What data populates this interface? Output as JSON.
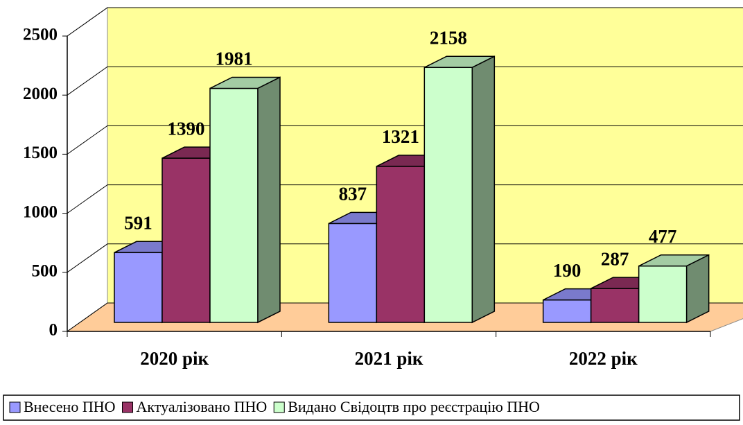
{
  "chart_data": {
    "type": "bar3d",
    "categories": [
      "2020 рік",
      "2021 рік",
      "2022 рік"
    ],
    "series": [
      {
        "name": "Внесено ПНО",
        "color": "#9999ff",
        "values": [
          591,
          837,
          190
        ]
      },
      {
        "name": "Актуалізовано ПНО",
        "color": "#993366",
        "values": [
          1390,
          1321,
          287
        ]
      },
      {
        "name": "Видано Свідоцтв про реєстрацію  ПНО",
        "color": "#ccffcc",
        "values": [
          1981,
          2158,
          477
        ]
      }
    ],
    "ylim": [
      0,
      2500
    ],
    "yticks": [
      0,
      500,
      1000,
      1500,
      2000,
      2500
    ],
    "grid": true,
    "legend": "bottom",
    "wall_color": "#ffff99",
    "floor_color": "#ffcc99"
  }
}
